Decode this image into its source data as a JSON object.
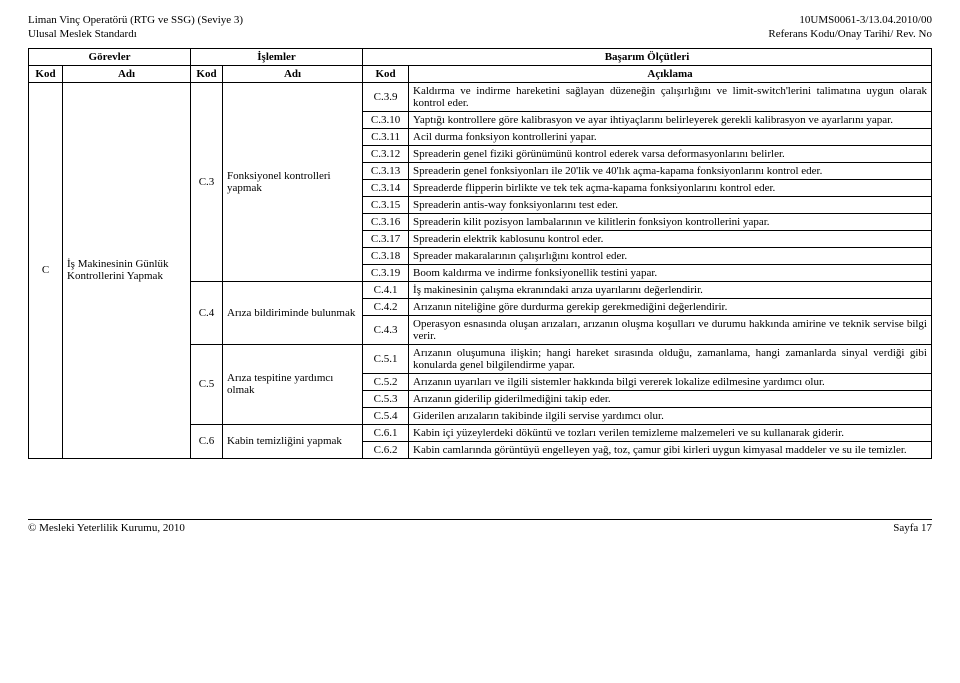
{
  "header": {
    "left1": "Liman Vinç Operatörü (RTG ve SSG) (Seviye 3)",
    "left2": "Ulusal Meslek Standardı",
    "right1": "10UMS0061-3/13.04.2010/00",
    "right2": "Referans Kodu/Onay Tarihi/ Rev. No"
  },
  "columns": {
    "gorevler": "Görevler",
    "islemler": "İşlemler",
    "basarim": "Başarım Ölçütleri",
    "kod": "Kod",
    "adi": "Adı",
    "aciklama": "Açıklama"
  },
  "task": {
    "kod": "C",
    "adi": "İş Makinesinin Günlük Kontrollerini Yapmak"
  },
  "ops": {
    "c3": {
      "kod": "C.3",
      "adi": "Fonksiyonel kontrolleri yapmak"
    },
    "c4": {
      "kod": "C.4",
      "adi": "Arıza bildiriminde bulunmak"
    },
    "c5": {
      "kod": "C.5",
      "adi": "Arıza tespitine yardımcı olmak"
    },
    "c6": {
      "kod": "C.6",
      "adi": "Kabin temizliğini yapmak"
    }
  },
  "rows": {
    "r1": {
      "k": "C.3.9",
      "t": "Kaldırma ve indirme hareketini sağlayan düzeneğin çalışırlığını ve limit-switch'lerini talimatına uygun olarak kontrol eder."
    },
    "r2": {
      "k": "C.3.10",
      "t": "Yaptığı kontrollere göre kalibrasyon ve ayar ihtiyaçlarını belirleyerek gerekli kalibrasyon ve ayarlarını yapar."
    },
    "r3": {
      "k": "C.3.11",
      "t": "Acil durma fonksiyon kontrollerini yapar."
    },
    "r4": {
      "k": "C.3.12",
      "t": "Spreaderin genel fiziki görünümünü kontrol ederek varsa deformasyonlarını belirler."
    },
    "r5": {
      "k": "C.3.13",
      "t": "Spreaderin genel fonksiyonları ile 20'lik ve 40'lık açma-kapama fonksiyonlarını kontrol eder."
    },
    "r6": {
      "k": "C.3.14",
      "t": "Spreaderde flipperin birlikte ve tek tek açma-kapama fonksiyonlarını kontrol eder."
    },
    "r7": {
      "k": "C.3.15",
      "t": "Spreaderin antis-way fonksiyonlarını test eder."
    },
    "r8": {
      "k": "C.3.16",
      "t": "Spreaderin kilit pozisyon lambalarının ve kilitlerin fonksiyon kontrollerini yapar."
    },
    "r9": {
      "k": "C.3.17",
      "t": "Spreaderin elektrik kablosunu kontrol eder."
    },
    "r10": {
      "k": "C.3.18",
      "t": "Spreader makaralarının çalışırlığını kontrol eder."
    },
    "r11": {
      "k": "C.3.19",
      "t": "Boom kaldırma ve indirme fonksiyonellik testini yapar."
    },
    "r12": {
      "k": "C.4.1",
      "t": "İş makinesinin çalışma ekranındaki arıza uyarılarını değerlendirir."
    },
    "r13": {
      "k": "C.4.2",
      "t": "Arızanın niteliğine göre durdurma gerekip gerekmediğini değerlendirir."
    },
    "r14": {
      "k": "C.4.3",
      "t": "Operasyon esnasında oluşan arızaları, arızanın oluşma koşulları ve durumu hakkında amirine ve teknik servise bilgi verir."
    },
    "r15": {
      "k": "C.5.1",
      "t": "Arızanın oluşumuna ilişkin; hangi hareket sırasında olduğu, zamanlama, hangi zamanlarda sinyal verdiği gibi konularda genel bilgilendirme yapar."
    },
    "r16": {
      "k": "C.5.2",
      "t": "Arızanın uyarıları ve ilgili sistemler hakkında bilgi vererek lokalize edilmesine yardımcı olur."
    },
    "r17": {
      "k": "C.5.3",
      "t": "Arızanın giderilip giderilmediğini takip eder."
    },
    "r18": {
      "k": "C.5.4",
      "t": "Giderilen arızaların takibinde ilgili servise yardımcı olur."
    },
    "r19": {
      "k": "C.6.1",
      "t": "Kabin içi yüzeylerdeki döküntü ve tozları verilen temizleme malzemeleri ve su kullanarak giderir."
    },
    "r20": {
      "k": "C.6.2",
      "t": "Kabin camlarında görüntüyü engelleyen yağ, toz, çamur gibi kirleri uygun kimyasal maddeler ve su ile temizler."
    }
  },
  "footer": {
    "left": "© Mesleki Yeterlilik Kurumu, 2010",
    "right": "Sayfa 17"
  }
}
